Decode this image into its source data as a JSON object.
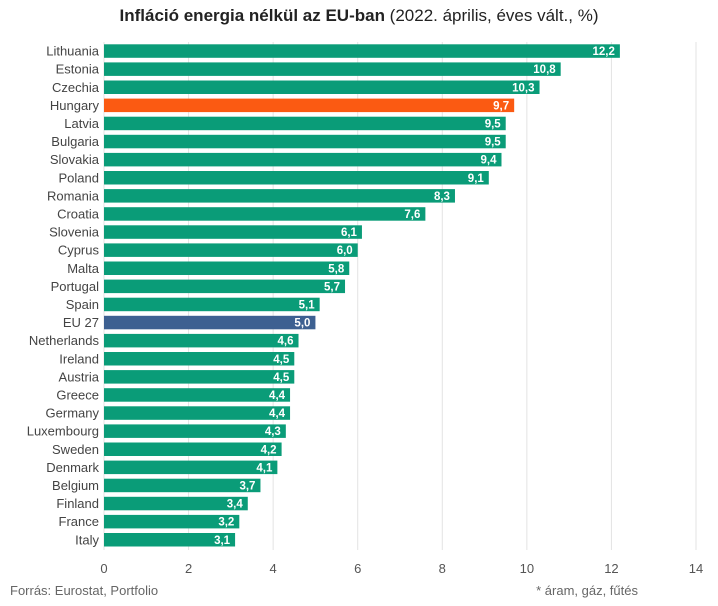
{
  "title_bold": "Infláció energia nélkül az EU-ban",
  "title_rest": " (2022. április, éves vált., %)",
  "source": "Forrás: Eurostat, Portfolio",
  "footnote": "* áram, gáz, fűtés",
  "colors": {
    "default": "#0a9c78",
    "highlight": "#fb5a12",
    "eu": "#3d6091",
    "grid": "#e3e3e3"
  },
  "chart_data": {
    "type": "bar",
    "orientation": "horizontal",
    "title": "Infláció energia nélkül az EU-ban (2022. április, éves vált., %)",
    "categories": [
      "Lithuania",
      "Estonia",
      "Czechia",
      "Hungary",
      "Latvia",
      "Bulgaria",
      "Slovakia",
      "Poland",
      "Romania",
      "Croatia",
      "Slovenia",
      "Cyprus",
      "Malta",
      "Portugal",
      "Spain",
      "EU 27",
      "Netherlands",
      "Ireland",
      "Austria",
      "Greece",
      "Germany",
      "Luxembourg",
      "Sweden",
      "Denmark",
      "Belgium",
      "Finland",
      "France",
      "Italy"
    ],
    "values": [
      12.2,
      10.8,
      10.3,
      9.7,
      9.5,
      9.5,
      9.4,
      9.1,
      8.3,
      7.6,
      6.1,
      6.0,
      5.8,
      5.7,
      5.1,
      5.0,
      4.6,
      4.5,
      4.5,
      4.4,
      4.4,
      4.3,
      4.2,
      4.1,
      3.7,
      3.4,
      3.2,
      3.1
    ],
    "value_labels": [
      "12,2",
      "10,8",
      "10,3",
      "9,7",
      "9,5",
      "9,5",
      "9,4",
      "9,1",
      "8,3",
      "7,6",
      "6,1",
      "6,0",
      "5,8",
      "5,7",
      "5,1",
      "5,0",
      "4,6",
      "4,5",
      "4,5",
      "4,4",
      "4,4",
      "4,3",
      "4,2",
      "4,1",
      "3,7",
      "3,4",
      "3,2",
      "3,1"
    ],
    "highlight": {
      "Hungary": "highlight",
      "EU 27": "eu"
    },
    "xlim": [
      0,
      14
    ],
    "xticks": [
      0,
      2,
      4,
      6,
      8,
      10,
      12,
      14
    ],
    "grid": true
  }
}
